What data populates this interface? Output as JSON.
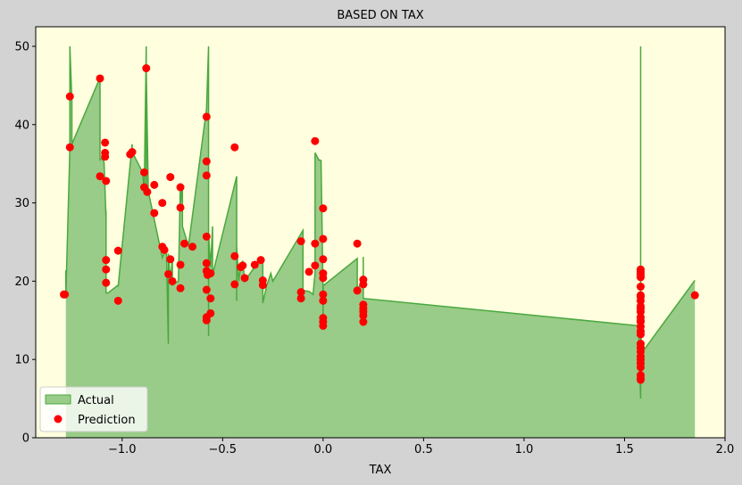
{
  "chart_data": {
    "type": "area",
    "title": "BASED ON TAX",
    "xlabel": "TAX",
    "ylabel": "",
    "xlim": [
      -1.43,
      2.0
    ],
    "ylim": [
      0,
      52.5
    ],
    "xticks": [
      -1.0,
      -0.5,
      0.0,
      0.5,
      1.0,
      1.5,
      2.0
    ],
    "xtick_labels": [
      "−1.0",
      "−0.5",
      "0.0",
      "0.5",
      "1.0",
      "1.5",
      "2.0"
    ],
    "yticks": [
      0,
      10,
      20,
      30,
      40,
      50
    ],
    "ytick_labels": [
      "0",
      "10",
      "20",
      "30",
      "40",
      "50"
    ],
    "legend_position": "lower-left",
    "background_color": "#ffffe0",
    "figure_color": "#d3d3d3",
    "series": [
      {
        "name": "Actual",
        "kind": "area",
        "fill_color": "#99cc88",
        "line_color": "#4aa83e",
        "x": [
          -1.28,
          -1.28,
          -1.26,
          -1.26,
          -1.26,
          -1.25,
          -1.25,
          -1.11,
          -1.11,
          -1.1,
          -1.09,
          -1.08,
          -1.08,
          -1.08,
          -1.07,
          -1.02,
          -1.02,
          -0.95,
          -0.95,
          -0.9,
          -0.89,
          -0.88,
          -0.88,
          -0.88,
          -0.87,
          -0.8,
          -0.78,
          -0.77,
          -0.77,
          -0.76,
          -0.75,
          -0.75,
          -0.72,
          -0.71,
          -0.71,
          -0.7,
          -0.7,
          -0.67,
          -0.58,
          -0.57,
          -0.57,
          -0.57,
          -0.56,
          -0.55,
          -0.55,
          -0.43,
          -0.43,
          -0.43,
          -0.42,
          -0.41,
          -0.4,
          -0.39,
          -0.32,
          -0.3,
          -0.3,
          -0.28,
          -0.26,
          -0.25,
          -0.1,
          -0.1,
          -0.07,
          -0.05,
          -0.04,
          -0.04,
          -0.02,
          -0.02,
          -0.01,
          -0.01,
          0.0,
          0.0,
          0.0,
          0.0,
          0.17,
          0.17,
          0.2,
          0.2,
          0.2,
          1.57,
          1.58,
          1.58,
          1.58,
          1.59,
          1.85
        ],
        "y": [
          21.4,
          18.2,
          37.0,
          44.0,
          50.0,
          43.0,
          37.5,
          46.0,
          35.5,
          35.7,
          35.2,
          28.0,
          29.0,
          18.5,
          18.5,
          19.5,
          19.3,
          37.5,
          36.5,
          34.0,
          31.9,
          50.0,
          31.0,
          47.0,
          31.5,
          23.0,
          24.4,
          12.0,
          23.5,
          20.0,
          23.0,
          19.5,
          20.0,
          32.5,
          30.0,
          32.0,
          27.0,
          24.5,
          42.0,
          50.0,
          13.0,
          26.0,
          21.8,
          27.0,
          20.8,
          33.4,
          17.5,
          24.5,
          20.0,
          22.0,
          22.6,
          20.0,
          22.6,
          23.0,
          17.2,
          19.5,
          21.0,
          20.0,
          26.5,
          18.8,
          18.7,
          18.3,
          21.0,
          36.4,
          35.4,
          35.5,
          35.4,
          35.1,
          18.3,
          15.0,
          19.2,
          19.4,
          22.9,
          18.9,
          20.3,
          23.1,
          17.8,
          14.3,
          5.0,
          50.0,
          13.0,
          11.0,
          20.1
        ]
      },
      {
        "name": "Prediction",
        "kind": "scatter",
        "color": "#ff0000",
        "x": [
          -1.29,
          -1.285,
          -1.26,
          -1.26,
          -1.11,
          -1.11,
          -1.085,
          -1.085,
          -1.085,
          -1.08,
          -1.08,
          -1.08,
          -1.08,
          -1.02,
          -1.02,
          -0.96,
          -0.95,
          -0.89,
          -0.89,
          -0.88,
          -0.875,
          -0.84,
          -0.84,
          -0.8,
          -0.8,
          -0.79,
          -0.77,
          -0.76,
          -0.76,
          -0.75,
          -0.71,
          -0.71,
          -0.71,
          -0.71,
          -0.69,
          -0.65,
          -0.58,
          -0.58,
          -0.58,
          -0.58,
          -0.58,
          -0.58,
          -0.58,
          -0.58,
          -0.58,
          -0.575,
          -0.56,
          -0.56,
          -0.56,
          -0.44,
          -0.44,
          -0.44,
          -0.41,
          -0.4,
          -0.39,
          -0.34,
          -0.31,
          -0.3,
          -0.3,
          -0.11,
          -0.11,
          -0.11,
          -0.07,
          -0.04,
          -0.04,
          -0.04,
          0.0,
          0.0,
          0.0,
          0.0,
          0.0,
          0.0,
          0.0,
          0.0,
          0.0,
          0.0,
          0.17,
          0.17,
          0.2,
          0.2,
          0.2,
          0.2,
          0.2,
          0.2,
          0.2,
          1.58,
          1.58,
          1.58,
          1.58,
          1.58,
          1.58,
          1.58,
          1.58,
          1.58,
          1.58,
          1.58,
          1.58,
          1.58,
          1.58,
          1.58,
          1.58,
          1.58,
          1.58,
          1.58,
          1.58,
          1.58,
          1.58,
          1.58,
          1.58,
          1.58,
          1.58,
          1.58,
          1.58,
          1.58,
          1.85
        ],
        "y": [
          18.3,
          18.3,
          43.6,
          37.1,
          45.9,
          33.4,
          37.7,
          36.4,
          35.9,
          32.8,
          22.7,
          21.5,
          19.8,
          23.9,
          17.5,
          36.2,
          36.5,
          33.9,
          32.0,
          47.2,
          31.4,
          32.3,
          28.7,
          24.4,
          30.0,
          24.0,
          20.9,
          33.3,
          22.8,
          20.0,
          32.0,
          29.4,
          22.1,
          19.1,
          24.8,
          24.4,
          41.0,
          35.3,
          33.5,
          25.7,
          22.3,
          21.3,
          18.9,
          15.4,
          15.0,
          20.8,
          21.0,
          17.8,
          15.9,
          37.1,
          23.2,
          19.6,
          21.8,
          22.0,
          20.4,
          22.1,
          22.7,
          20.1,
          19.5,
          25.1,
          18.6,
          17.8,
          21.2,
          37.9,
          24.8,
          22.0,
          29.3,
          25.4,
          22.8,
          21.0,
          20.4,
          18.3,
          17.5,
          15.3,
          14.8,
          14.3,
          24.8,
          18.8,
          20.2,
          19.6,
          17.0,
          16.5,
          15.6,
          14.8,
          16.1,
          21.5,
          21.0,
          20.5,
          19.3,
          18.2,
          17.5,
          16.8,
          16.1,
          15.4,
          14.8,
          14.2,
          13.6,
          13.2,
          12.0,
          11.5,
          11.0,
          10.4,
          9.5,
          9.0,
          8.0,
          7.6,
          7.4,
          21.3,
          20.7,
          18.0,
          16.5,
          15.0,
          12.0,
          10.0,
          18.2
        ]
      }
    ]
  }
}
